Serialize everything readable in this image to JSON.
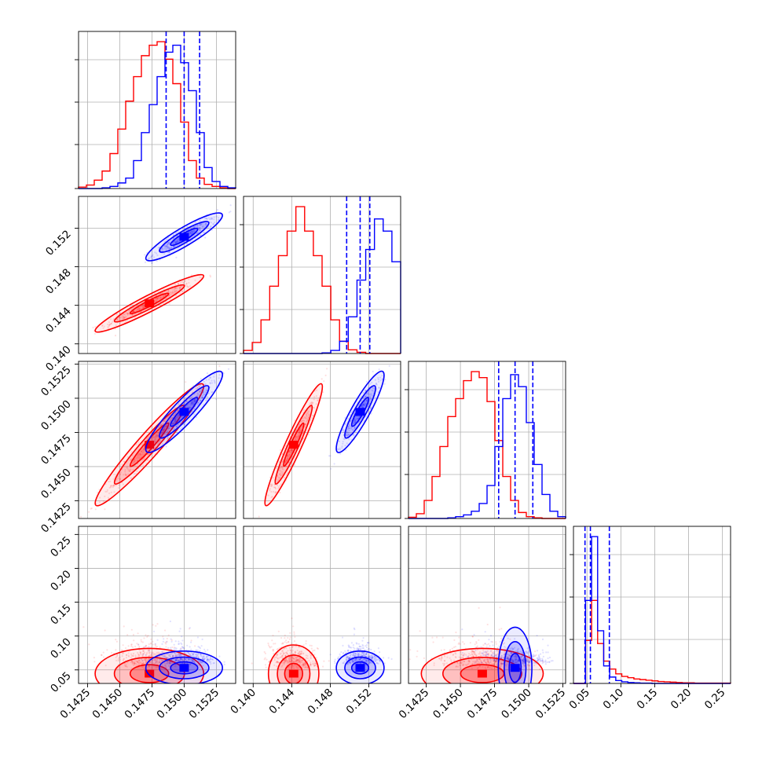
{
  "colors": {
    "series_a": "#ff0000",
    "series_b": "#0000ff",
    "grid": "#b0b0b0",
    "frame": "#000000"
  },
  "chart_data": {
    "type": "corner",
    "title": "",
    "parameters": [
      "",
      "",
      "",
      ""
    ],
    "n_params": 4,
    "grid": true,
    "series": [
      {
        "color": "#ff0000",
        "means": [
          0.1473,
          0.1442,
          0.1466,
          0.055
        ],
        "sds": [
          0.0017,
          0.0012,
          0.0018,
          0.03
        ],
        "corr": [
          [
            1,
            0.95,
            0.96,
            -0.25
          ],
          [
            0.95,
            1,
            0.95,
            -0.2
          ],
          [
            0.96,
            0.95,
            1,
            -0.25
          ],
          [
            -0.25,
            -0.2,
            -0.25,
            1
          ]
        ],
        "contour_sizes": [
          0.55,
          1.0,
          1.55
        ]
      },
      {
        "color": "#0000ff",
        "means": [
          0.15,
          0.1511,
          0.149,
          0.06
        ],
        "sds": [
          0.0012,
          0.001,
          0.0012,
          0.02
        ],
        "corr": [
          [
            1,
            0.9,
            0.92,
            -0.2
          ],
          [
            0.9,
            1,
            0.9,
            -0.15
          ],
          [
            0.92,
            0.9,
            1,
            -0.2
          ],
          [
            -0.2,
            -0.15,
            -0.2,
            1
          ]
        ],
        "contour_sizes": [
          0.55,
          1.0,
          1.55
        ]
      }
    ],
    "quantile_lines": {
      "color": "#0000ff",
      "style": "dashed",
      "values": [
        [
          0.1486,
          0.15,
          0.1512
        ],
        [
          0.1497,
          0.1511,
          0.1521
        ],
        [
          0.1478,
          0.149,
          0.1503
        ],
        [
          0.047,
          0.055,
          0.083
        ]
      ]
    },
    "axes": [
      {
        "range": [
          0.1418,
          0.154
        ],
        "ticks": [
          0.1425,
          0.145,
          0.1475,
          0.15,
          0.1525
        ],
        "tick_labels": [
          "0.1425",
          "0.1450",
          "0.1475",
          "0.1500",
          "0.1525"
        ]
      },
      {
        "range": [
          0.139,
          0.1553
        ],
        "ticks": [
          0.14,
          0.144,
          0.148,
          0.152
        ],
        "tick_labels": [
          "0.140",
          "0.144",
          "0.148",
          "0.152"
        ]
      },
      {
        "range": [
          0.1412,
          0.1527
        ],
        "ticks": [
          0.1425,
          0.145,
          0.1475,
          0.15,
          0.1525
        ],
        "tick_labels": [
          "0.1425",
          "0.1450",
          "0.1475",
          "0.1500",
          "0.1525"
        ]
      },
      {
        "range": [
          0.03,
          0.262
        ],
        "ticks": [
          0.05,
          0.1,
          0.15,
          0.2,
          0.25
        ],
        "tick_labels": [
          "0.05",
          "0.10",
          "0.15",
          "0.20",
          "0.25"
        ]
      }
    ],
    "histograms": [
      {
        "counts_a": [
          2,
          5,
          12,
          25,
          50,
          85,
          125,
          160,
          190,
          205,
          210,
          185,
          150,
          95,
          40,
          15,
          6,
          3,
          1,
          0
        ],
        "counts_b": [
          0,
          0,
          0,
          1,
          3,
          8,
          15,
          40,
          80,
          120,
          160,
          195,
          205,
          180,
          140,
          80,
          30,
          10,
          3,
          1
        ]
      },
      {
        "counts_a": [
          5,
          18,
          55,
          110,
          160,
          200,
          240,
          200,
          160,
          110,
          55,
          20,
          6,
          2,
          0,
          0,
          0,
          0
        ],
        "counts_b": [
          0,
          0,
          0,
          0,
          0,
          0,
          0,
          0,
          0,
          1,
          5,
          20,
          60,
          120,
          170,
          220,
          200,
          150
        ]
      },
      {
        "counts_a": [
          2,
          8,
          30,
          70,
          120,
          170,
          200,
          230,
          245,
          235,
          195,
          130,
          70,
          30,
          10,
          3,
          1,
          0,
          0,
          0
        ],
        "counts_b": [
          0,
          0,
          0,
          0,
          0,
          1,
          3,
          6,
          12,
          25,
          55,
          120,
          200,
          240,
          220,
          160,
          90,
          40,
          12,
          3
        ]
      },
      {
        "counts_a": [
          0,
          0,
          135,
          260,
          125,
          70,
          45,
          30,
          22,
          18,
          14,
          12,
          10,
          8,
          6,
          5,
          4,
          3,
          2,
          2,
          1,
          1,
          1,
          1,
          1,
          1
        ],
        "counts_b": [
          0,
          0,
          260,
          460,
          165,
          55,
          20,
          9,
          5,
          3,
          2,
          1,
          1,
          0,
          0,
          0,
          0,
          0,
          0,
          0,
          0,
          0,
          0,
          0,
          0,
          0
        ]
      }
    ]
  }
}
